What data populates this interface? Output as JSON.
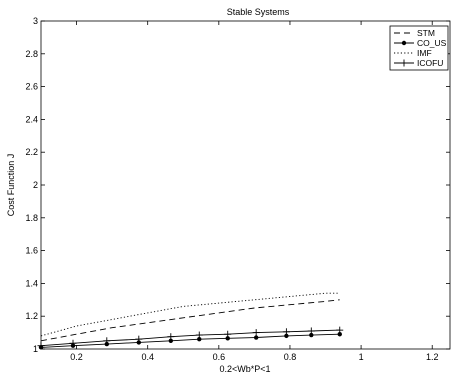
{
  "chart_data": {
    "type": "line",
    "title": "Stable Systems",
    "xlabel": "0.2<Wb*P<1",
    "ylabel": "Cost Function J",
    "xlim": [
      0.1,
      1.25
    ],
    "ylim": [
      1.0,
      3.0
    ],
    "xticks": [
      0.2,
      0.4,
      0.6,
      0.8,
      1,
      1.2
    ],
    "xtick_labels": [
      "0.2",
      "0.4",
      "0.6",
      "0.8",
      "1",
      "1.2"
    ],
    "yticks": [
      1,
      1.2,
      1.4,
      1.6,
      1.8,
      2,
      2.2,
      2.4,
      2.6,
      2.8,
      3
    ],
    "ytick_labels": [
      "1",
      "1.2",
      "1.4",
      "1.6",
      "1.8",
      "2",
      "2.2",
      "2.4",
      "2.6",
      "2.8",
      "3"
    ],
    "grid": false,
    "legend_position": "top-right",
    "series": [
      {
        "name": "STM",
        "style": "dashed",
        "marker": "none",
        "color": "#000000",
        "x": [
          0.1,
          0.2,
          0.3,
          0.4,
          0.5,
          0.6,
          0.7,
          0.8,
          0.9,
          0.94
        ],
        "y": [
          1.05,
          1.09,
          1.13,
          1.16,
          1.19,
          1.22,
          1.25,
          1.27,
          1.29,
          1.3
        ]
      },
      {
        "name": "CO_US",
        "style": "solid",
        "marker": "filled-circle",
        "color": "#000000",
        "x": [
          0.1,
          0.19,
          0.285,
          0.375,
          0.465,
          0.545,
          0.625,
          0.705,
          0.79,
          0.86,
          0.94
        ],
        "y": [
          1.01,
          1.02,
          1.03,
          1.04,
          1.05,
          1.06,
          1.065,
          1.07,
          1.08,
          1.085,
          1.09
        ]
      },
      {
        "name": "IMF",
        "style": "dotted",
        "marker": "none",
        "color": "#000000",
        "x": [
          0.1,
          0.2,
          0.3,
          0.4,
          0.5,
          0.6,
          0.7,
          0.8,
          0.9,
          0.94
        ],
        "y": [
          1.08,
          1.14,
          1.18,
          1.22,
          1.26,
          1.28,
          1.3,
          1.32,
          1.34,
          1.34
        ]
      },
      {
        "name": "ICOFU",
        "style": "solid",
        "marker": "plus",
        "color": "#000000",
        "x": [
          0.1,
          0.19,
          0.285,
          0.375,
          0.465,
          0.545,
          0.625,
          0.705,
          0.79,
          0.86,
          0.94
        ],
        "y": [
          1.02,
          1.035,
          1.05,
          1.06,
          1.075,
          1.085,
          1.09,
          1.1,
          1.105,
          1.11,
          1.115
        ]
      }
    ]
  }
}
